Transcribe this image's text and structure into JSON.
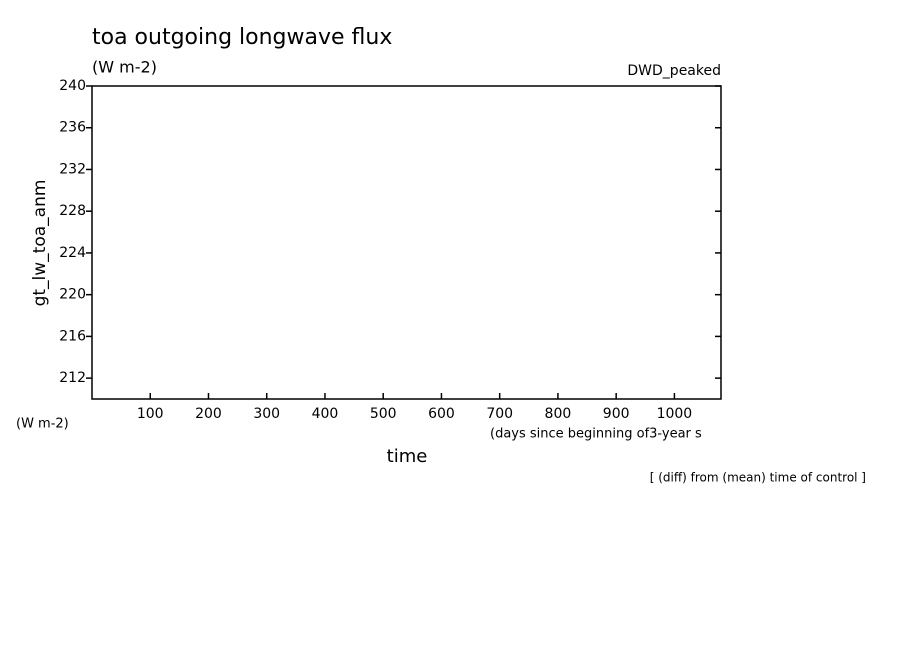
{
  "chart_data": {
    "type": "line",
    "title": "toa outgoing longwave flux",
    "subtitle": "(W m-2)",
    "run_label": "DWD_peaked",
    "ylabel": "gt_lw_toa_anm",
    "yunits": "(W m-2)",
    "xlabel": "time",
    "xunits": "(days since beginning of3-year s",
    "note": "[ (diff) from (mean) time of control ]",
    "xlim": [
      0,
      1080
    ],
    "xticks": [
      100,
      200,
      300,
      400,
      500,
      600,
      700,
      800,
      900,
      1000
    ],
    "ylim": [
      210,
      240
    ],
    "yticks": [
      212,
      216,
      220,
      224,
      228,
      232,
      236,
      240
    ],
    "grid": false
  }
}
